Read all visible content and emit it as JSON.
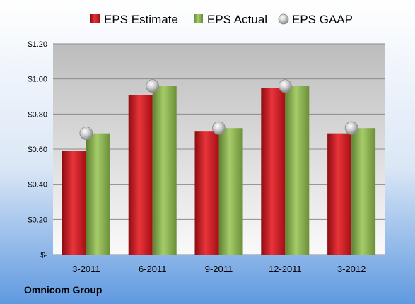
{
  "company": "Omnicom Group",
  "colors": {
    "estimate": "#c0141b",
    "actual": "#7fa844",
    "gaap": "#a9a9a9"
  },
  "chart_data": {
    "type": "bar",
    "categories": [
      "3-2011",
      "6-2011",
      "9-2011",
      "12-2011",
      "3-2012"
    ],
    "series": [
      {
        "name": "EPS Estimate",
        "kind": "bar",
        "values": [
          0.59,
          0.91,
          0.7,
          0.95,
          0.69
        ]
      },
      {
        "name": "EPS Actual",
        "kind": "bar",
        "values": [
          0.69,
          0.96,
          0.72,
          0.96,
          0.72
        ]
      },
      {
        "name": "EPS GAAP",
        "kind": "marker",
        "values": [
          0.69,
          0.96,
          0.72,
          0.96,
          0.72
        ]
      }
    ],
    "yticks": [
      "$-",
      "$0.20",
      "$0.40",
      "$0.60",
      "$0.80",
      "$1.00",
      "$1.20"
    ],
    "ylim": [
      0,
      1.2
    ],
    "grid": true,
    "legend_position": "top"
  }
}
